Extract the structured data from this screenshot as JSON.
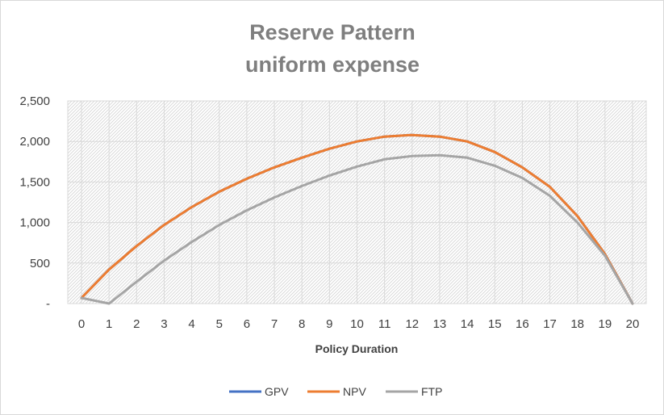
{
  "chart_data": {
    "type": "line",
    "title": "Reserve Pattern",
    "subtitle": "uniform expense",
    "xlabel": "Policy Duration",
    "ylabel": "",
    "x": [
      0,
      1,
      2,
      3,
      4,
      5,
      6,
      7,
      8,
      9,
      10,
      11,
      12,
      13,
      14,
      15,
      16,
      17,
      18,
      19,
      20
    ],
    "ylim": [
      0,
      2500
    ],
    "yticks": [
      {
        "value": 0,
        "label": "-"
      },
      {
        "value": 500,
        "label": "500"
      },
      {
        "value": 1000,
        "label": "1,000"
      },
      {
        "value": 1500,
        "label": "1,500"
      },
      {
        "value": 2000,
        "label": "2,000"
      },
      {
        "value": 2500,
        "label": "2,500"
      }
    ],
    "grid": true,
    "legend_position": "bottom",
    "series": [
      {
        "name": "GPV",
        "color": "#4472c4",
        "values": [
          70,
          420,
          710,
          970,
          1190,
          1380,
          1540,
          1680,
          1800,
          1910,
          2000,
          2060,
          2080,
          2060,
          2000,
          1870,
          1680,
          1440,
          1080,
          610,
          0
        ]
      },
      {
        "name": "NPV",
        "color": "#ed7d31",
        "values": [
          70,
          420,
          710,
          970,
          1190,
          1380,
          1540,
          1680,
          1800,
          1910,
          2000,
          2060,
          2080,
          2060,
          2000,
          1870,
          1680,
          1440,
          1080,
          610,
          0
        ]
      },
      {
        "name": "FTP",
        "color": "#a5a5a5",
        "values": [
          70,
          0,
          270,
          530,
          760,
          970,
          1150,
          1310,
          1450,
          1580,
          1690,
          1780,
          1820,
          1830,
          1800,
          1700,
          1550,
          1330,
          1000,
          590,
          0
        ]
      }
    ]
  }
}
